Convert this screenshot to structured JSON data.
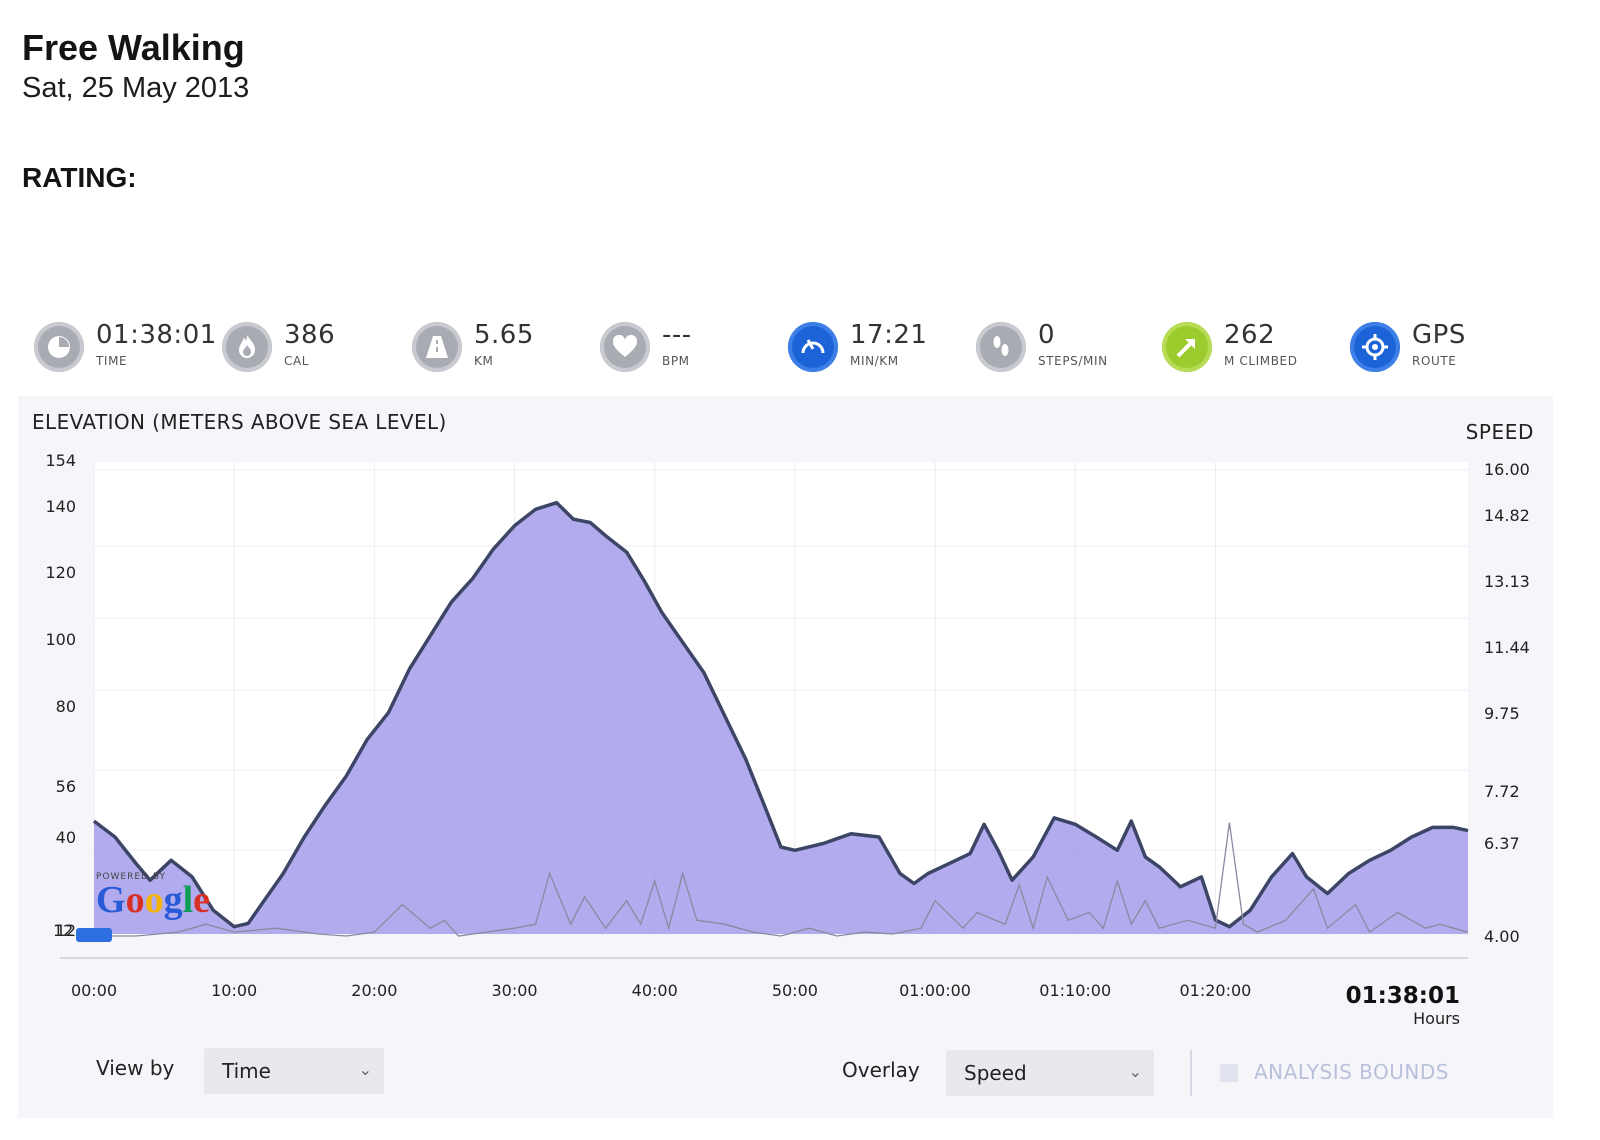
{
  "header": {
    "title": "Free Walking",
    "date": "Sat, 25 May 2013",
    "rating_label": "RATING:"
  },
  "stats": [
    {
      "icon": "clock-icon",
      "value": "01:38:01",
      "unit": "TIME",
      "color": "#a9abb3"
    },
    {
      "icon": "flame-icon",
      "value": "386",
      "unit": "CAL",
      "color": "#a9abb3"
    },
    {
      "icon": "road-icon",
      "value": "5.65",
      "unit": "KM",
      "color": "#a9abb3"
    },
    {
      "icon": "heart-icon",
      "value": "---",
      "unit": "BPM",
      "color": "#a9abb3"
    },
    {
      "icon": "speedometer-icon",
      "value": "17:21",
      "unit": "MIN/KM",
      "color": "#1b63d6"
    },
    {
      "icon": "footsteps-icon",
      "value": "0",
      "unit": "STEPS/MIN",
      "color": "#a9abb3"
    },
    {
      "icon": "climb-arrow-icon",
      "value": "262",
      "unit": "M CLIMBED",
      "color": "#9ccb2e"
    },
    {
      "icon": "gps-target-icon",
      "value": "GPS",
      "unit": "ROUTE",
      "color": "#1b63d6"
    }
  ],
  "chart": {
    "elevation_title": "ELEVATION (METERS ABOVE SEA LEVEL)",
    "speed_title": "SPEED",
    "total_time": "01:38:01",
    "total_unit": "Hours",
    "start_marker": "12"
  },
  "chart_data": {
    "type": "area",
    "x_unit": "minutes",
    "xlim": [
      0,
      98.02
    ],
    "x_tick_labels": [
      "00:00",
      "10:00",
      "20:00",
      "30:00",
      "40:00",
      "50:00",
      "01:00:00",
      "01:10:00",
      "01:20:00"
    ],
    "x_tick_values": [
      0,
      10,
      20,
      30,
      40,
      50,
      60,
      70,
      80
    ],
    "y_left": {
      "label": "ELEVATION (METERS ABOVE SEA LEVEL)",
      "ticks": [
        12,
        40,
        56,
        80,
        100,
        120,
        140,
        154
      ],
      "ylim": [
        12,
        154
      ]
    },
    "y_right": {
      "label": "SPEED",
      "ticks": [
        "4.00",
        "6.37",
        "7.72",
        "9.75",
        "11.44",
        "13.13",
        "14.82",
        "16.00"
      ]
    },
    "series": [
      {
        "name": "Elevation",
        "color": "#9f96e8",
        "x": [
          0,
          1.5,
          3,
          4,
          5.5,
          7,
          8.5,
          10,
          11,
          12,
          13.5,
          15,
          16.5,
          18,
          19.5,
          21,
          22.5,
          24,
          25.5,
          27,
          28.5,
          30,
          31.5,
          33,
          34.2,
          35.4,
          36.5,
          38,
          39.3,
          40.5,
          42,
          43.5,
          45,
          46.5,
          48,
          49,
          50,
          52,
          54,
          56,
          57.5,
          58.5,
          59.5,
          61,
          62.5,
          63.5,
          64.5,
          65.5,
          67,
          68.5,
          70,
          71.5,
          73,
          74,
          75,
          76,
          77.5,
          79,
          80,
          81,
          82.5,
          84,
          85.5,
          86.5,
          88,
          89.5,
          91,
          92.5,
          94,
          95.5,
          97,
          98.02
        ],
        "y": [
          45,
          40,
          32,
          27,
          33,
          28,
          18,
          13,
          14,
          20,
          29,
          40,
          50,
          59,
          70,
          78,
          91,
          101,
          111,
          118,
          127,
          134,
          139,
          141,
          136,
          135,
          131,
          126,
          117,
          108,
          99,
          90,
          77,
          64,
          48,
          37,
          36,
          38,
          41,
          40,
          29,
          26,
          29,
          32,
          35,
          44,
          36,
          27,
          34,
          46,
          44,
          40,
          36,
          45,
          34,
          31,
          25,
          28,
          15,
          13,
          18,
          28,
          35,
          28,
          23,
          29,
          33,
          36,
          40,
          43,
          43,
          42
        ]
      },
      {
        "name": "Speed",
        "color": "#8a89a0",
        "x": [
          0,
          3,
          6,
          8,
          10,
          13,
          16,
          18,
          20,
          22,
          24,
          25,
          26,
          28,
          30,
          31.5,
          32.5,
          34,
          35,
          36.5,
          38,
          39,
          40,
          41,
          42,
          43,
          45,
          47,
          49,
          51,
          53,
          55,
          57,
          59,
          60,
          62,
          63,
          65,
          66,
          67,
          68,
          69.5,
          71,
          72,
          73,
          74,
          75,
          76,
          78,
          80,
          81,
          82,
          83,
          85,
          87,
          88,
          90,
          91,
          93,
          95,
          96,
          98.02
        ],
        "y": [
          4.0,
          4.0,
          4.1,
          4.3,
          4.1,
          4.2,
          4.05,
          4.0,
          4.1,
          4.8,
          4.2,
          4.4,
          4.0,
          4.1,
          4.2,
          4.3,
          5.6,
          4.3,
          5.0,
          4.2,
          4.9,
          4.3,
          5.4,
          4.2,
          5.6,
          4.4,
          4.3,
          4.1,
          4.0,
          4.2,
          4.0,
          4.1,
          4.05,
          4.2,
          4.9,
          4.2,
          4.6,
          4.3,
          5.3,
          4.2,
          5.5,
          4.4,
          4.6,
          4.2,
          5.4,
          4.3,
          4.9,
          4.2,
          4.4,
          4.2,
          6.9,
          4.3,
          4.1,
          4.4,
          5.2,
          4.2,
          4.8,
          4.1,
          4.6,
          4.2,
          4.3,
          4.1
        ]
      }
    ],
    "grid": true
  },
  "controls": {
    "view_by_label": "View by",
    "view_by_value": "Time",
    "overlay_label": "Overlay",
    "overlay_value": "Speed",
    "analysis_bounds_label": "ANALYSIS BOUNDS"
  },
  "map_attribution": {
    "powered_by": "POWERED BY",
    "logo_text": "Google"
  }
}
